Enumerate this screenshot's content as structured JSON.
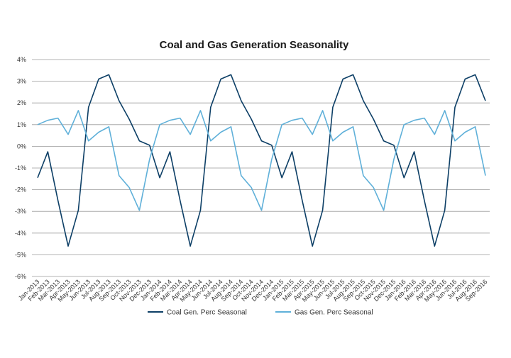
{
  "chart_data": {
    "type": "line",
    "title": "Coal and Gas Generation Seasonality",
    "xlabel": "",
    "ylabel": "",
    "ylim": [
      -6,
      4
    ],
    "yticks": [
      4,
      3,
      2,
      1,
      0,
      -1,
      -2,
      -3,
      -4,
      -5,
      -6
    ],
    "ytick_labels": [
      "4%",
      "3%",
      "2%",
      "1%",
      "0%",
      "-1%",
      "-2%",
      "-3%",
      "-4%",
      "-5%",
      "-6%"
    ],
    "grid": "horizontal",
    "legend_position": "bottom",
    "categories": [
      "Jan-2013",
      "Feb-2013",
      "Mar-2013",
      "Apr-2013",
      "May-2013",
      "Jun-2013",
      "Jul-2013",
      "Aug-2013",
      "Sep-2013",
      "Oct-2013",
      "Nov-2013",
      "Dec-2013",
      "Jan-2014",
      "Feb-2014",
      "Mar-2014",
      "Apr-2014",
      "May-2014",
      "Jun-2014",
      "Jul-2014",
      "Aug-2014",
      "Sep-2014",
      "Oct-2014",
      "Nov-2014",
      "Dec-2014",
      "Jan-2015",
      "Feb-2015",
      "Mar-2015",
      "Apr-2015",
      "May-2015",
      "Jun-2015",
      "Jul-2015",
      "Aug-2015",
      "Sep-2015",
      "Oct-2015",
      "Nov-2015",
      "Dec-2015",
      "Jan-2016",
      "Feb-2016",
      "Mar-2016",
      "Apr-2016",
      "May-2016",
      "Jun-2016",
      "Jul-2016",
      "Aug-2016",
      "Sep-2016"
    ],
    "series": [
      {
        "name": "Coal Gen. Perc Seasonal",
        "color": "#0d3f66",
        "values": [
          -1.45,
          -0.25,
          -2.5,
          -4.6,
          -2.95,
          1.8,
          3.1,
          3.3,
          2.1,
          1.25,
          0.25,
          0.05,
          -1.45,
          -0.25,
          -2.5,
          -4.6,
          -2.95,
          1.8,
          3.1,
          3.3,
          2.1,
          1.25,
          0.25,
          0.05,
          -1.45,
          -0.25,
          -2.5,
          -4.6,
          -2.95,
          1.8,
          3.1,
          3.3,
          2.1,
          1.25,
          0.25,
          0.05,
          -1.45,
          -0.25,
          -2.5,
          -4.6,
          -2.95,
          1.8,
          3.1,
          3.3,
          2.1
        ]
      },
      {
        "name": "Gas Gen. Perc Seasonal",
        "color": "#5fb0d9",
        "values": [
          1.0,
          1.2,
          1.3,
          0.55,
          1.65,
          0.25,
          0.65,
          0.9,
          -1.35,
          -1.9,
          -2.95,
          -0.6,
          1.0,
          1.2,
          1.3,
          0.55,
          1.65,
          0.25,
          0.65,
          0.9,
          -1.35,
          -1.9,
          -2.95,
          -0.6,
          1.0,
          1.2,
          1.3,
          0.55,
          1.65,
          0.25,
          0.65,
          0.9,
          -1.35,
          -1.9,
          -2.95,
          -0.6,
          1.0,
          1.2,
          1.3,
          0.55,
          1.65,
          0.25,
          0.65,
          0.9,
          -1.35
        ]
      }
    ]
  }
}
